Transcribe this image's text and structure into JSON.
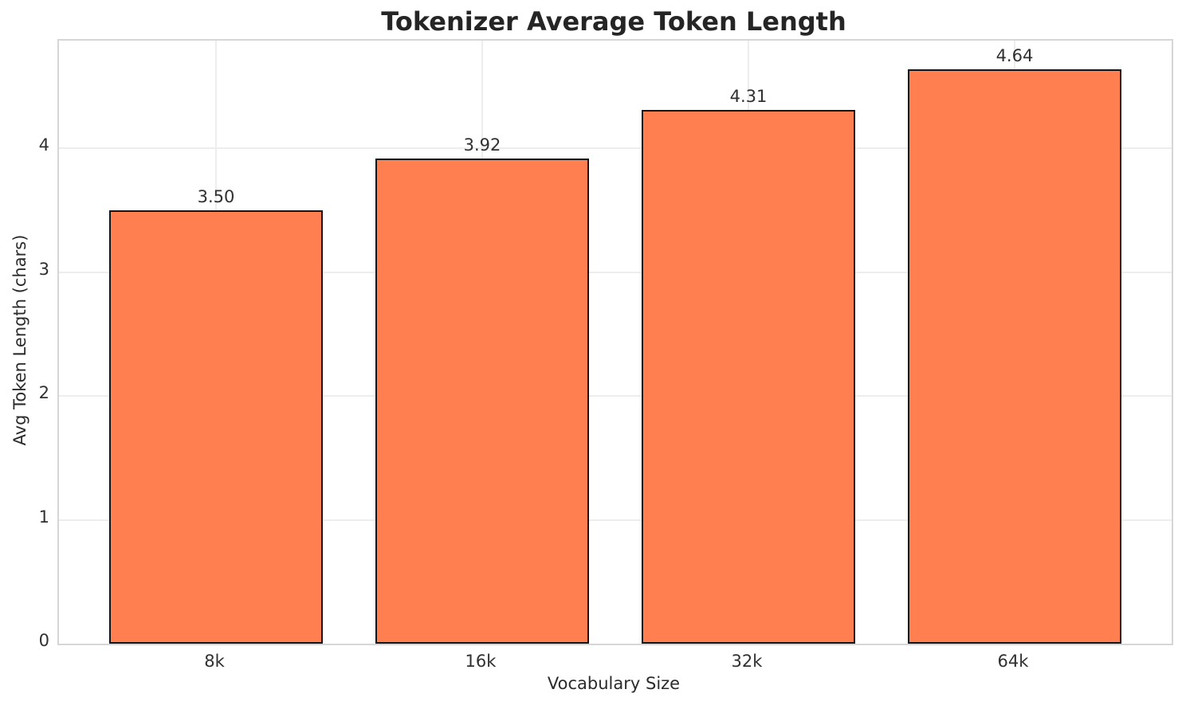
{
  "chart_data": {
    "type": "bar",
    "title": "Tokenizer Average Token Length",
    "xlabel": "Vocabulary Size",
    "ylabel": "Avg Token Length (chars)",
    "categories": [
      "8k",
      "16k",
      "32k",
      "64k"
    ],
    "values": [
      3.5,
      3.92,
      4.31,
      4.64
    ],
    "value_labels": [
      "3.50",
      "3.92",
      "4.31",
      "4.64"
    ],
    "yticks": [
      0,
      1,
      2,
      3,
      4
    ],
    "ytick_labels": [
      "0",
      "1",
      "2",
      "3",
      "4"
    ],
    "ylim": [
      0,
      4.872
    ],
    "xlim": [
      -0.59,
      3.59
    ],
    "bar_width_units": 0.8,
    "grid": true,
    "legend_position": "none",
    "colors": {
      "bar_fill": "#FF7F50",
      "bar_edge": "#151515",
      "grid_color": "#ededed",
      "spine_color": "#d6d6d6",
      "text_color": "#303030",
      "title_color": "#252525",
      "background": "#ffffff"
    }
  }
}
